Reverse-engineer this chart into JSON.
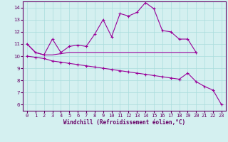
{
  "xlabel": "Windchill (Refroidissement éolien,°C)",
  "x": [
    0,
    1,
    2,
    3,
    4,
    5,
    6,
    7,
    8,
    9,
    10,
    11,
    12,
    13,
    14,
    15,
    16,
    17,
    18,
    19,
    20,
    21,
    22,
    23
  ],
  "line1": [
    11.0,
    10.3,
    10.1,
    11.4,
    10.3,
    10.8,
    10.9,
    10.8,
    11.8,
    13.0,
    11.6,
    13.5,
    13.3,
    13.6,
    14.4,
    13.9,
    12.1,
    12.0,
    11.4,
    11.4,
    10.3,
    null,
    null,
    null
  ],
  "line2": [
    11.0,
    10.3,
    10.1,
    10.1,
    10.2,
    10.3,
    10.3,
    10.3,
    10.3,
    10.3,
    10.3,
    10.3,
    10.3,
    10.3,
    10.3,
    10.3,
    10.3,
    10.3,
    10.3,
    10.3,
    10.3,
    null,
    null,
    null
  ],
  "line3": [
    10.0,
    9.9,
    9.8,
    9.6,
    9.5,
    9.4,
    9.3,
    9.2,
    9.1,
    9.0,
    8.9,
    8.8,
    8.7,
    8.6,
    8.5,
    8.4,
    8.3,
    8.2,
    8.1,
    8.6,
    7.9,
    7.5,
    7.2,
    6.0
  ],
  "line_color": "#990099",
  "bg_color": "#d4f0f0",
  "grid_color": "#aadddd",
  "axis_color": "#660066",
  "ylim": [
    5.5,
    14.5
  ],
  "xlim": [
    -0.5,
    23.5
  ],
  "yticks": [
    6,
    7,
    8,
    9,
    10,
    11,
    12,
    13,
    14
  ],
  "xticks": [
    0,
    1,
    2,
    3,
    4,
    5,
    6,
    7,
    8,
    9,
    10,
    11,
    12,
    13,
    14,
    15,
    16,
    17,
    18,
    19,
    20,
    21,
    22,
    23
  ],
  "xlabel_fontsize": 5.5,
  "tick_fontsize": 5.0
}
